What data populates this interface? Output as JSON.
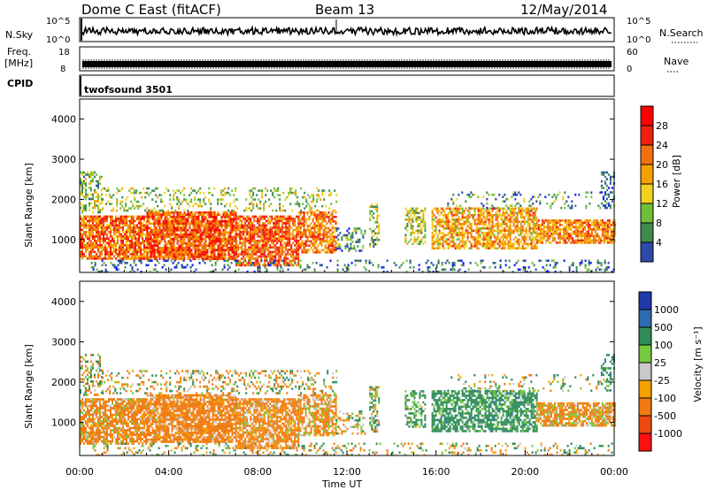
{
  "header": {
    "station": "Dome C East (fitACF)",
    "beam": "Beam 13",
    "date": "12/May/2014"
  },
  "panels": {
    "nsky": {
      "label": "N.Sky",
      "left_top": "10^5",
      "left_bottom": "10^0",
      "right_top": "10^5",
      "right_bottom": "10^0",
      "right_label": "N.Search"
    },
    "freq": {
      "label_line1": "Freq.",
      "label_line2": "[MHz]",
      "left_top": "18",
      "left_bottom": "8",
      "right_top": "60",
      "right_bottom": "0",
      "right_label": "Nave"
    },
    "cpid": {
      "label": "CPID",
      "text": "twofsound 3501"
    }
  },
  "colors": {
    "power": [
      "#0018ff",
      "#2c4aa8",
      "#3e8a4e",
      "#6fbf3a",
      "#f2d020",
      "#f6a000",
      "#f07010",
      "#f02010",
      "#ff0000"
    ],
    "velocity": [
      "#1e3aa8",
      "#2d6ab0",
      "#2f8c5a",
      "#76c83e",
      "#c8c8c8",
      "#f6a000",
      "#f07a10",
      "#ee4a10",
      "#ff1010"
    ]
  },
  "chart_data": [
    {
      "type": "heatmap",
      "title": "",
      "ylabel": "Slant Range [km]",
      "yticks": [
        "1000",
        "2000",
        "3000",
        "4000"
      ],
      "ylim": [
        180,
        4500
      ],
      "xlim": [
        "00:00",
        "24:00"
      ],
      "colorbar": {
        "label": "Power [dB]",
        "ticks": [
          "4",
          "8",
          "12",
          "16",
          "20",
          "24",
          "28"
        ],
        "range": [
          0,
          32
        ]
      }
    },
    {
      "type": "heatmap",
      "title": "",
      "ylabel": "Slant Range [km]",
      "xlabel": "Time UT",
      "xticks": [
        "00:00",
        "04:00",
        "08:00",
        "12:00",
        "16:00",
        "20:00",
        "00:00"
      ],
      "yticks": [
        "1000",
        "2000",
        "3000",
        "4000"
      ],
      "ylim": [
        180,
        4500
      ],
      "xlim": [
        "00:00",
        "24:00"
      ],
      "colorbar": {
        "label": "Velocity [m s⁻¹]",
        "ticks": [
          "1000",
          "500",
          "100",
          "25",
          "-25",
          "-100",
          "-500",
          "-1000"
        ]
      }
    }
  ]
}
